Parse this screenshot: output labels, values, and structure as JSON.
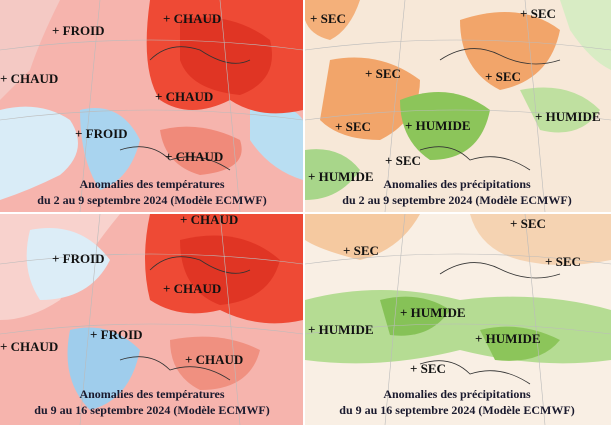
{
  "panels": [
    {
      "labels": [
        "+ FROID",
        "+ CHAUD",
        "+ CHAUD",
        "+ CHAUD",
        "+ FROID",
        "+ CHAUD"
      ],
      "caption": [
        "Anomalies des températures",
        "du 2 au 9 septembre 2024 (Modèle ECMWF)"
      ]
    },
    {
      "labels": [
        "+ SEC",
        "+ SEC",
        "+ SEC",
        "+ SEC",
        "+ SEC",
        "+ HUMIDE",
        "+ HUMIDE",
        "+ SEC",
        "+ HUMIDE"
      ],
      "caption": [
        "Anomalies des précipitations",
        "du 2 au 9 septembre 2024 (Modèle ECMWF)"
      ]
    },
    {
      "labels": [
        "+ CHAUD",
        "+ FROID",
        "+ CHAUD",
        "+ FROID",
        "+ CHAUD",
        "+ CHAUD"
      ],
      "caption": [
        "Anomalies des températures",
        "du 9 au 16 septembre 2024 (Modèle ECMWF)"
      ]
    },
    {
      "labels": [
        "+ SEC",
        "+ SEC",
        "+ SEC",
        "+ HUMIDE",
        "+ HUMIDE",
        "+ HUMIDE",
        "+ SEC"
      ],
      "caption": [
        "Anomalies des précipitations",
        "du 9 au 16 septembre 2024 (Modèle ECMWF)"
      ]
    }
  ]
}
